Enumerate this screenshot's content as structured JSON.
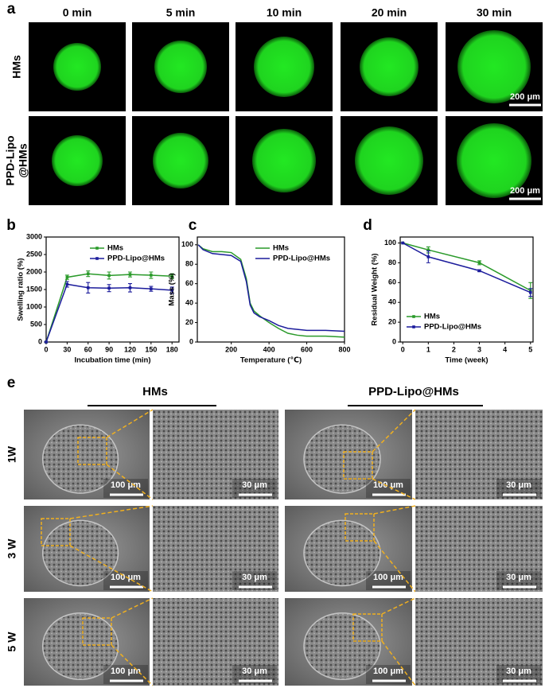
{
  "panel_labels": [
    "a",
    "b",
    "c",
    "d",
    "e"
  ],
  "panel_a": {
    "columns": [
      "0 min",
      "5 min",
      "10 min",
      "20 min",
      "30 min"
    ],
    "rows": [
      {
        "label_lines": [
          "HMs"
        ],
        "scale_bar": "200 μm"
      },
      {
        "label_lines": [
          "PPD-Lipo",
          "@HMs"
        ],
        "scale_bar": "200 μm"
      }
    ]
  },
  "panel_e": {
    "groups": [
      "HMs",
      "PPD-Lipo@HMs"
    ],
    "rows": [
      "1W",
      "3 W",
      "5 W"
    ],
    "scale_bars": [
      "100 μm",
      "30 μm"
    ]
  },
  "chart_data": [
    {
      "type": "line",
      "xlabel": "Incubation time (min)",
      "ylabel": "Swelling ratio (%)",
      "x": [
        0,
        30,
        60,
        90,
        120,
        150,
        180
      ],
      "xlim": [
        0,
        190
      ],
      "xticks": [
        0,
        30,
        60,
        90,
        120,
        150,
        180
      ],
      "ylim": [
        0,
        3000
      ],
      "yticks": [
        0,
        500,
        1000,
        1500,
        2000,
        2500,
        3000
      ],
      "legend": "upper right",
      "markers": true,
      "series": [
        {
          "name": "HMs",
          "color": "#2a9a2a",
          "values": [
            0,
            1850,
            1950,
            1900,
            1930,
            1910,
            1880
          ],
          "errors": [
            0,
            60,
            80,
            100,
            70,
            90,
            70
          ]
        },
        {
          "name": "PPD-Lipo@HMs",
          "color": "#1c1c9c",
          "values": [
            0,
            1650,
            1550,
            1540,
            1550,
            1520,
            1480
          ],
          "errors": [
            0,
            80,
            150,
            100,
            120,
            70,
            90
          ]
        }
      ]
    },
    {
      "type": "line",
      "xlabel": "Temperature (℃)",
      "ylabel": "Mass (%)",
      "x": [
        25,
        50,
        100,
        150,
        200,
        250,
        280,
        300,
        320,
        350,
        400,
        450,
        500,
        550,
        600,
        700,
        800
      ],
      "xlim": [
        20,
        800
      ],
      "xticks": [
        200,
        400,
        600,
        800
      ],
      "ylim": [
        0,
        108
      ],
      "yticks": [
        0,
        20,
        40,
        60,
        80,
        100
      ],
      "legend": "upper right",
      "markers": false,
      "series": [
        {
          "name": "HMs",
          "color": "#2a9a2a",
          "values": [
            100,
            96,
            93,
            93,
            92,
            85,
            65,
            40,
            32,
            27,
            20,
            14,
            9,
            7,
            6,
            6,
            5
          ]
        },
        {
          "name": "PPD-Lipo@HMs",
          "color": "#1c1c9c",
          "values": [
            100,
            95,
            91,
            90,
            89,
            83,
            62,
            38,
            30,
            26,
            22,
            17,
            14,
            13,
            12,
            12,
            11
          ]
        }
      ]
    },
    {
      "type": "line",
      "xlabel": "Time (week)",
      "ylabel": "Residual Weight (%)",
      "x": [
        0,
        1,
        3,
        5
      ],
      "xlim": [
        -0.1,
        5.1
      ],
      "xticks": [
        0,
        1,
        2,
        3,
        4,
        5
      ],
      "ylim": [
        0,
        106
      ],
      "yticks": [
        0,
        20,
        40,
        60,
        80,
        100
      ],
      "legend": "lower left",
      "markers": true,
      "series": [
        {
          "name": "HMs",
          "color": "#2a9a2a",
          "values": [
            100,
            93,
            80,
            52
          ],
          "errors": [
            0,
            3,
            2,
            8
          ]
        },
        {
          "name": "PPD-Lipo@HMs",
          "color": "#1c1c9c",
          "values": [
            100,
            86,
            72,
            50
          ],
          "errors": [
            0,
            6,
            1,
            4
          ]
        }
      ]
    }
  ]
}
